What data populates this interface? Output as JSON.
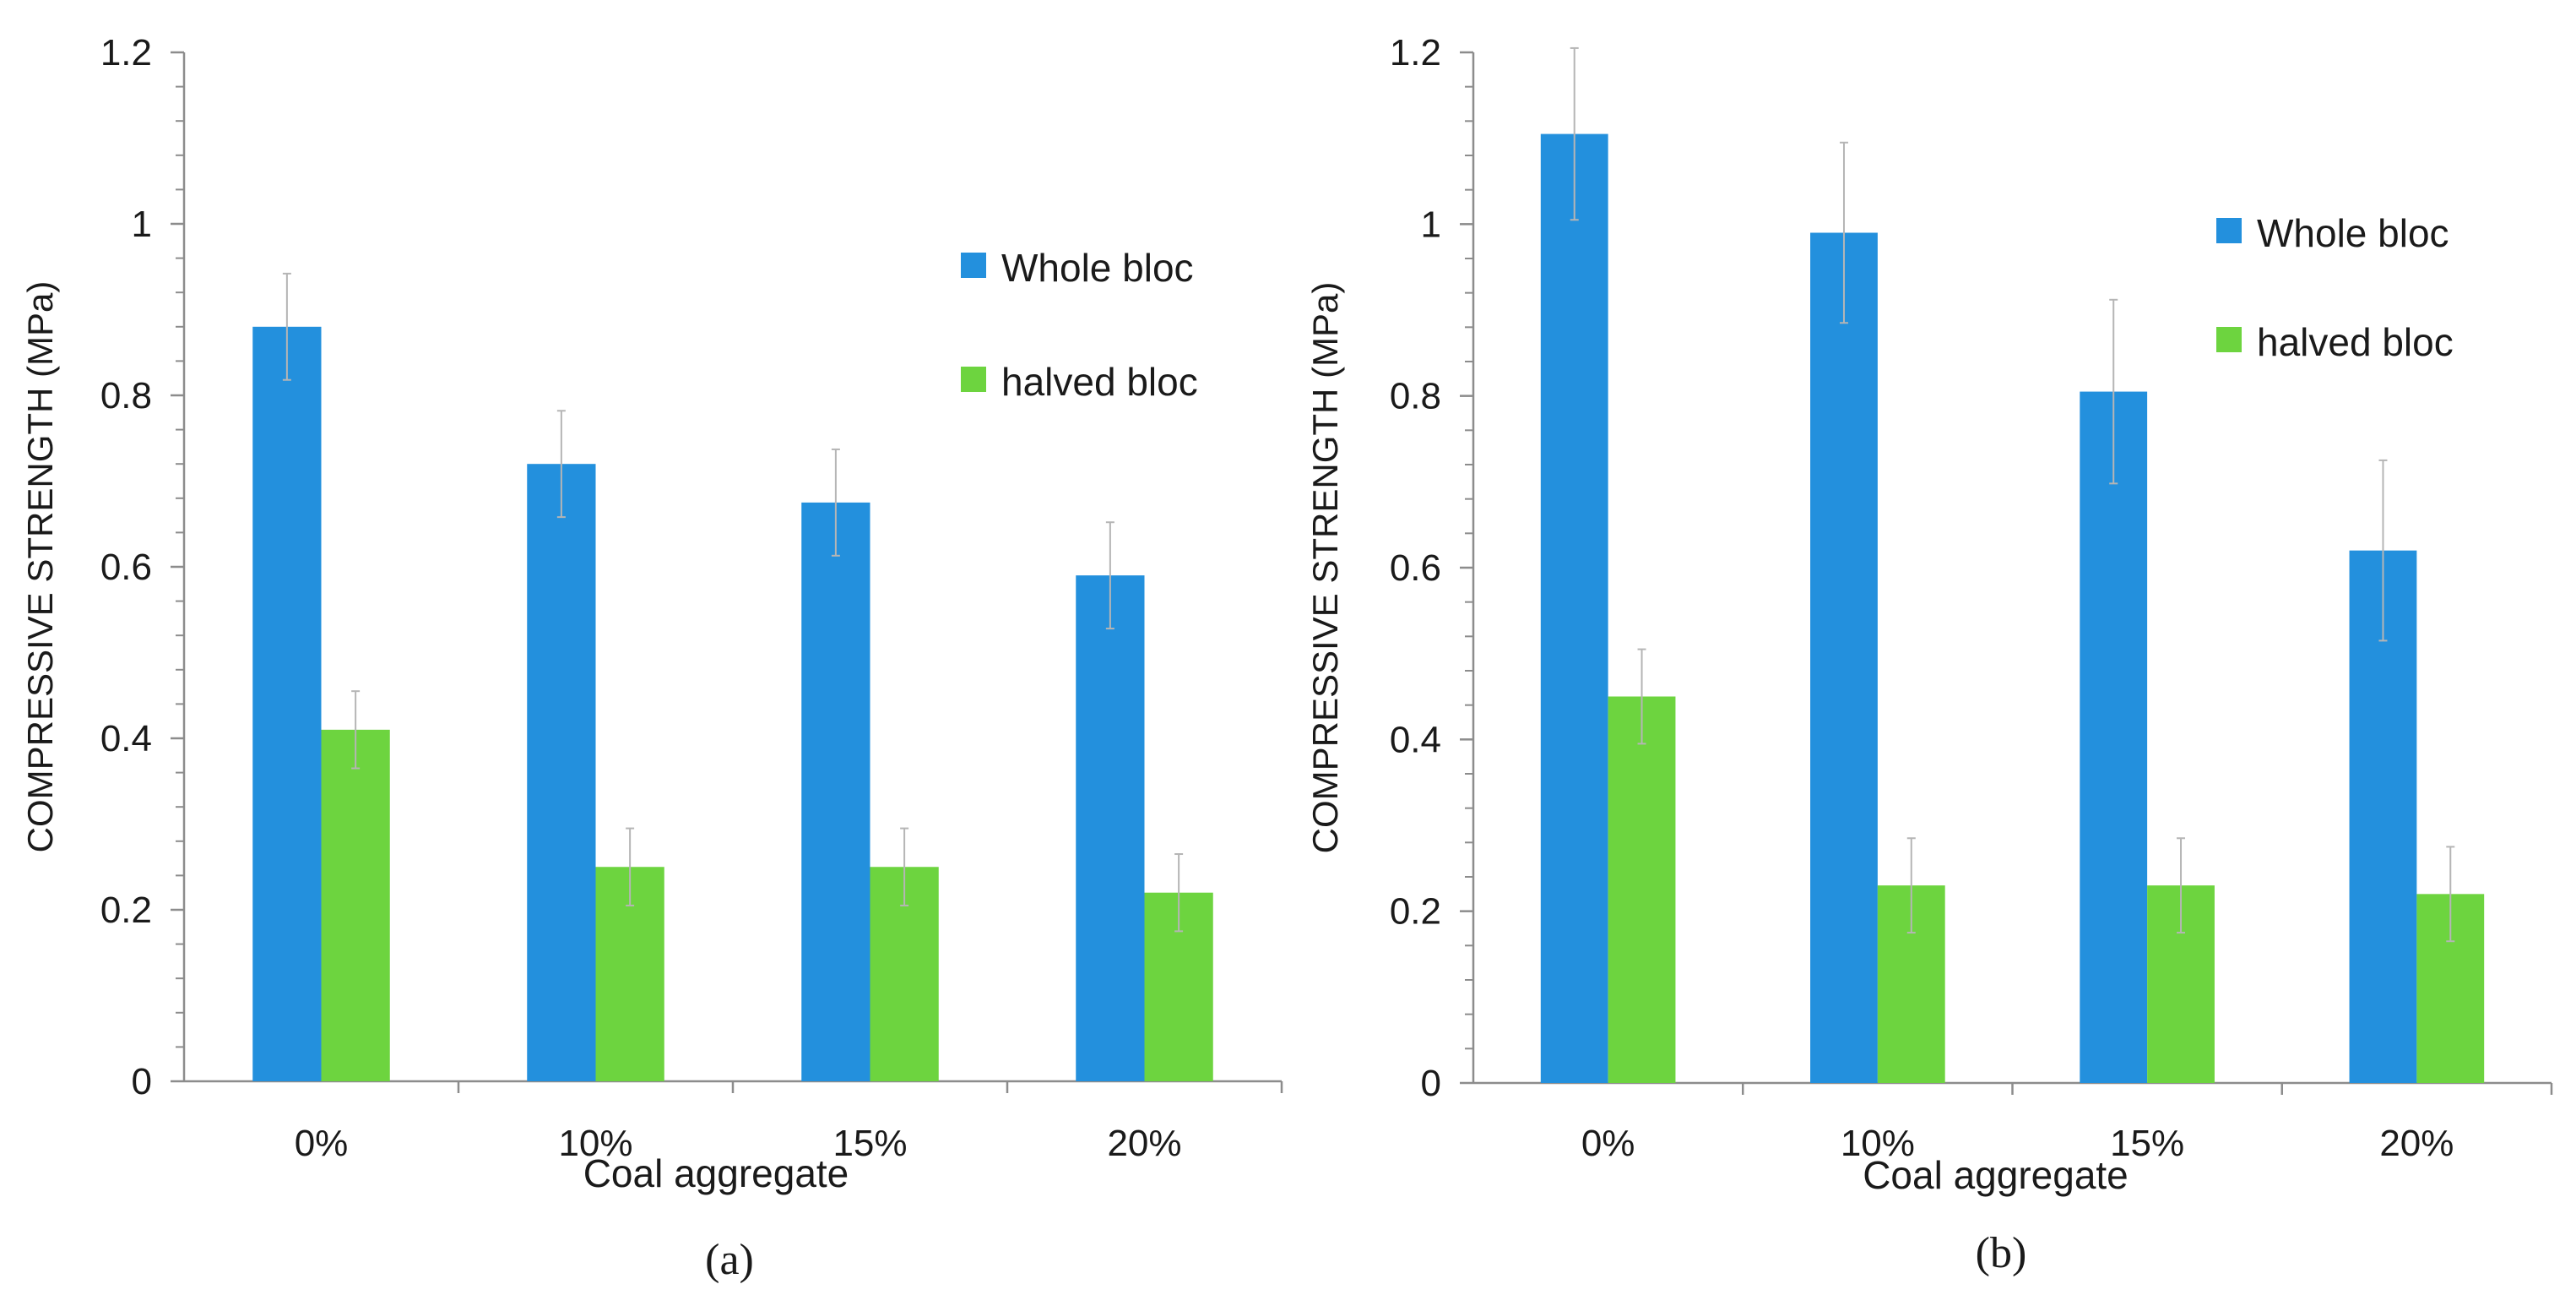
{
  "chart_data": [
    {
      "type": "bar",
      "panel_label": "(a)",
      "categories": [
        "0%",
        "10%",
        "15%",
        "20%"
      ],
      "series": [
        {
          "name": "Whole bloc",
          "color": "#2390dd",
          "values": [
            0.88,
            0.72,
            0.675,
            0.59
          ],
          "errors": [
            0.062,
            0.062,
            0.062,
            0.062
          ]
        },
        {
          "name": "halved bloc",
          "color": "#6dd43f",
          "values": [
            0.41,
            0.25,
            0.25,
            0.22
          ],
          "errors": [
            0.045,
            0.045,
            0.045,
            0.045
          ]
        }
      ],
      "title": "",
      "xlabel": "Coal aggregate",
      "ylabel": "COMPRESSIVE STRENGTH (MPa)",
      "ylim": [
        0,
        1.2
      ],
      "yticks": [
        0,
        0.2,
        0.4,
        0.6,
        0.8,
        1,
        1.2
      ],
      "ytick_labels": [
        "0",
        "0.2",
        "0.4",
        "0.6",
        "0.8",
        "1",
        "1.2"
      ],
      "minor_ticks_per_major": 5,
      "grid": false,
      "legend_position": "right"
    },
    {
      "type": "bar",
      "panel_label": "(b)",
      "categories": [
        "0%",
        "10%",
        "15%",
        "20%"
      ],
      "series": [
        {
          "name": "Whole bloc",
          "color": "#2390dd",
          "values": [
            1.105,
            0.99,
            0.805,
            0.62
          ],
          "errors": [
            0.1,
            0.105,
            0.107,
            0.105
          ]
        },
        {
          "name": "halved bloc",
          "color": "#6dd43f",
          "values": [
            0.45,
            0.23,
            0.23,
            0.22
          ],
          "errors": [
            0.055,
            0.055,
            0.055,
            0.055
          ]
        }
      ],
      "title": "",
      "xlabel": "Coal aggregate",
      "ylabel": "COMPRESSIVE STRENGTH (MPa)",
      "ylim": [
        0,
        1.2
      ],
      "yticks": [
        0,
        0.2,
        0.4,
        0.6,
        0.8,
        1,
        1.2
      ],
      "ytick_labels": [
        "0",
        "0.2",
        "0.4",
        "0.6",
        "0.8",
        "1",
        "1.2"
      ],
      "minor_ticks_per_major": 5,
      "grid": false,
      "legend_position": "right"
    }
  ]
}
